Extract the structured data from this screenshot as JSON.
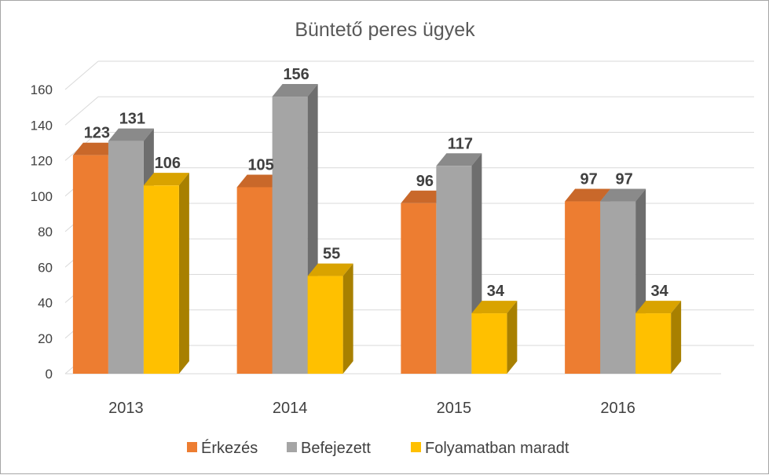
{
  "chart_data": {
    "type": "bar",
    "title": "Büntető peres ügyek",
    "categories": [
      "2013",
      "2014",
      "2015",
      "2016"
    ],
    "series": [
      {
        "name": "Érkezés",
        "values": [
          123,
          105,
          96,
          97
        ],
        "color": "#ED7D31",
        "side_color": "#B15D24",
        "top_color": "#C9682A"
      },
      {
        "name": "Befejezett",
        "values": [
          131,
          156,
          117,
          97
        ],
        "color": "#A5A5A5",
        "side_color": "#6E6E6E",
        "top_color": "#8A8A8A"
      },
      {
        "name": "Folyamatban maradt",
        "values": [
          106,
          55,
          34,
          34
        ],
        "color": "#FFC000",
        "side_color": "#A88000",
        "top_color": "#D9A300"
      }
    ],
    "y_ticks": [
      0,
      20,
      40,
      60,
      80,
      100,
      120,
      140,
      160
    ],
    "ylim": [
      0,
      160
    ],
    "xlabel": "",
    "ylabel": "",
    "grid": true,
    "legend_position": "bottom",
    "style": "3d-clustered-column"
  }
}
